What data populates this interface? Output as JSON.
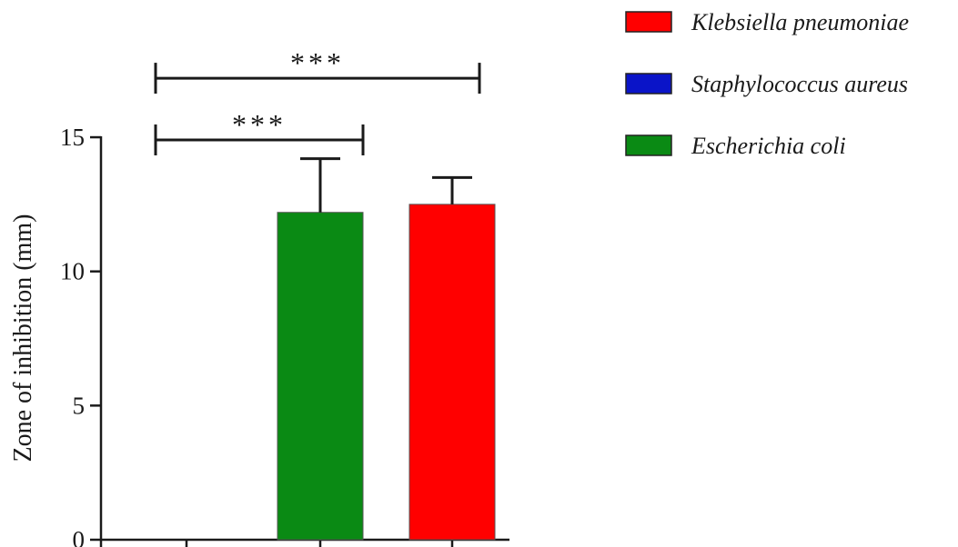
{
  "chart_data": {
    "type": "bar",
    "title": "",
    "xlabel": "",
    "ylabel": "Zone of inhibition (mm)",
    "ylim": [
      0,
      15
    ],
    "yticks": [
      0,
      5,
      10,
      15
    ],
    "grid": false,
    "legend_position": "top-right",
    "series": [
      {
        "name": "Staphylococcus aureus",
        "color": "#0a14c8",
        "value": 0,
        "error": 0
      },
      {
        "name": "Escherichia coli",
        "color": "#0a8a14",
        "value": 12.2,
        "error": 2.0
      },
      {
        "name": "Klebsiella pneumoniae",
        "color": "#ff0000",
        "value": 12.5,
        "error": 1.0
      }
    ],
    "legend_order": [
      "Klebsiella pneumoniae",
      "Staphylococcus aureus",
      "Escherichia coli"
    ],
    "significance": [
      {
        "from": 0,
        "to": 1,
        "label": "***",
        "level": 14.9
      },
      {
        "from": 0,
        "to": 2,
        "label": "***",
        "level": 17.2
      }
    ]
  }
}
